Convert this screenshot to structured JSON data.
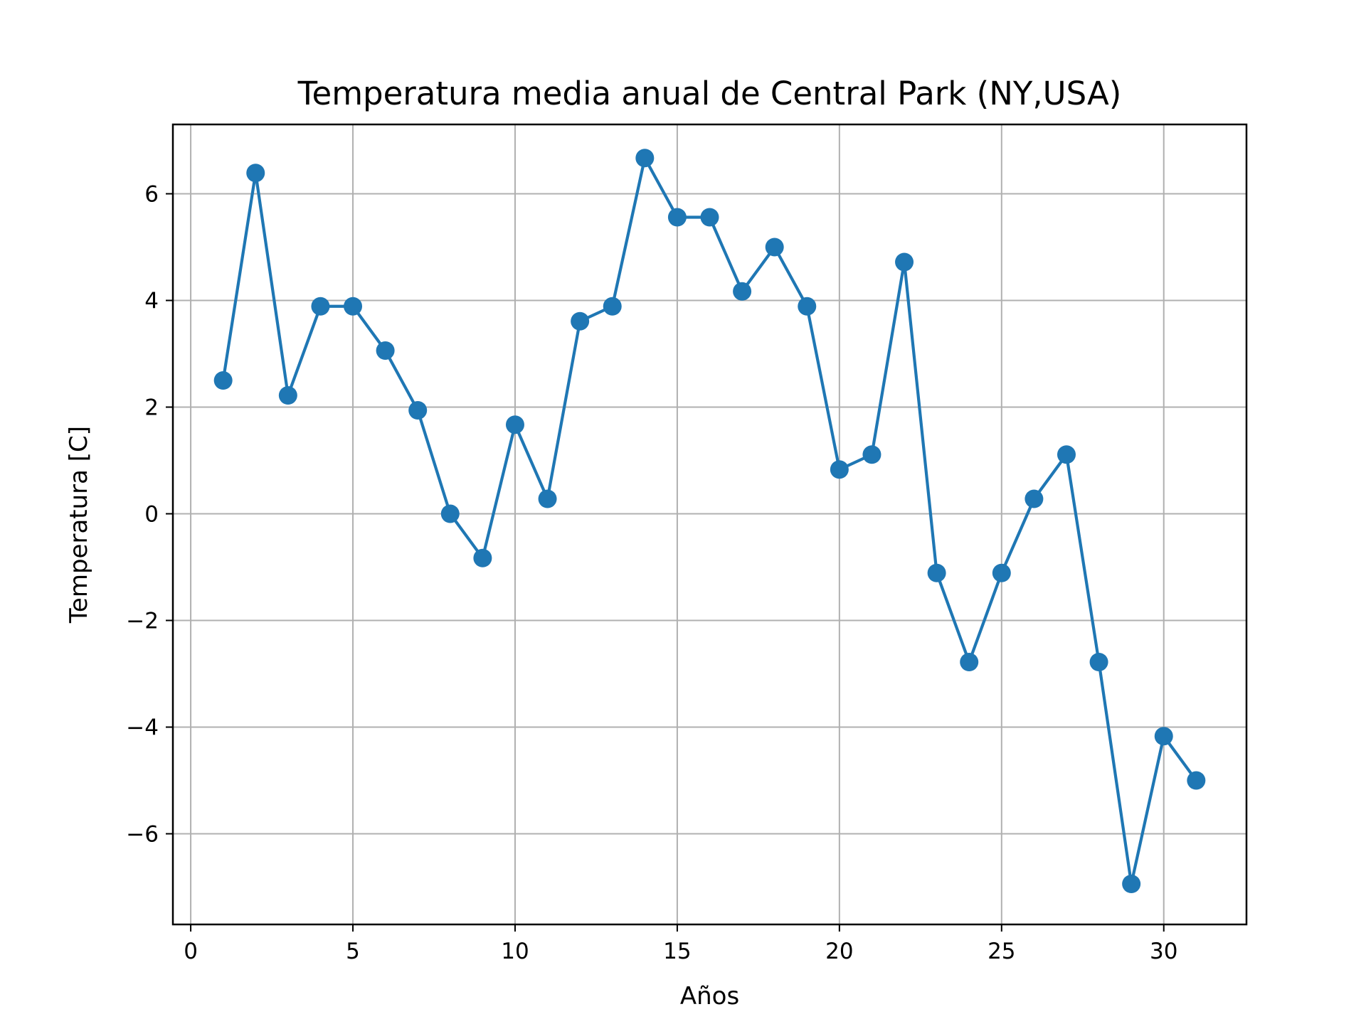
{
  "chart_data": {
    "type": "line",
    "title": "Temperatura media anual de Central Park (NY,USA)",
    "xlabel": "Años",
    "ylabel": "Temperatura [C]",
    "xlim": [
      -0.55,
      32.55
    ],
    "ylim": [
      -7.7,
      7.3
    ],
    "x_ticks": [
      0,
      5,
      10,
      15,
      20,
      25,
      30
    ],
    "x_tick_labels": [
      "0",
      "5",
      "10",
      "15",
      "20",
      "25",
      "30"
    ],
    "y_ticks": [
      -6,
      -4,
      -2,
      0,
      2,
      4,
      6
    ],
    "y_tick_labels": [
      "−6",
      "−4",
      "−2",
      "0",
      "2",
      "4",
      "6"
    ],
    "grid": true,
    "marker": "circle",
    "series": [
      {
        "color": "#1f77b4",
        "x": [
          1,
          2,
          3,
          4,
          5,
          6,
          7,
          8,
          9,
          10,
          11,
          12,
          13,
          14,
          15,
          16,
          17,
          18,
          19,
          20,
          21,
          22,
          23,
          24,
          25,
          26,
          27,
          28,
          29,
          30,
          31
        ],
        "y": [
          2.5,
          6.39,
          2.22,
          3.89,
          3.89,
          3.06,
          1.94,
          0.0,
          -0.83,
          1.67,
          0.28,
          3.61,
          3.89,
          6.67,
          5.56,
          5.56,
          4.17,
          5.0,
          3.89,
          0.83,
          1.11,
          4.72,
          -1.11,
          -2.78,
          -1.11,
          0.28,
          1.11,
          -2.78,
          -6.94,
          -4.17,
          -5.0
        ]
      }
    ]
  }
}
